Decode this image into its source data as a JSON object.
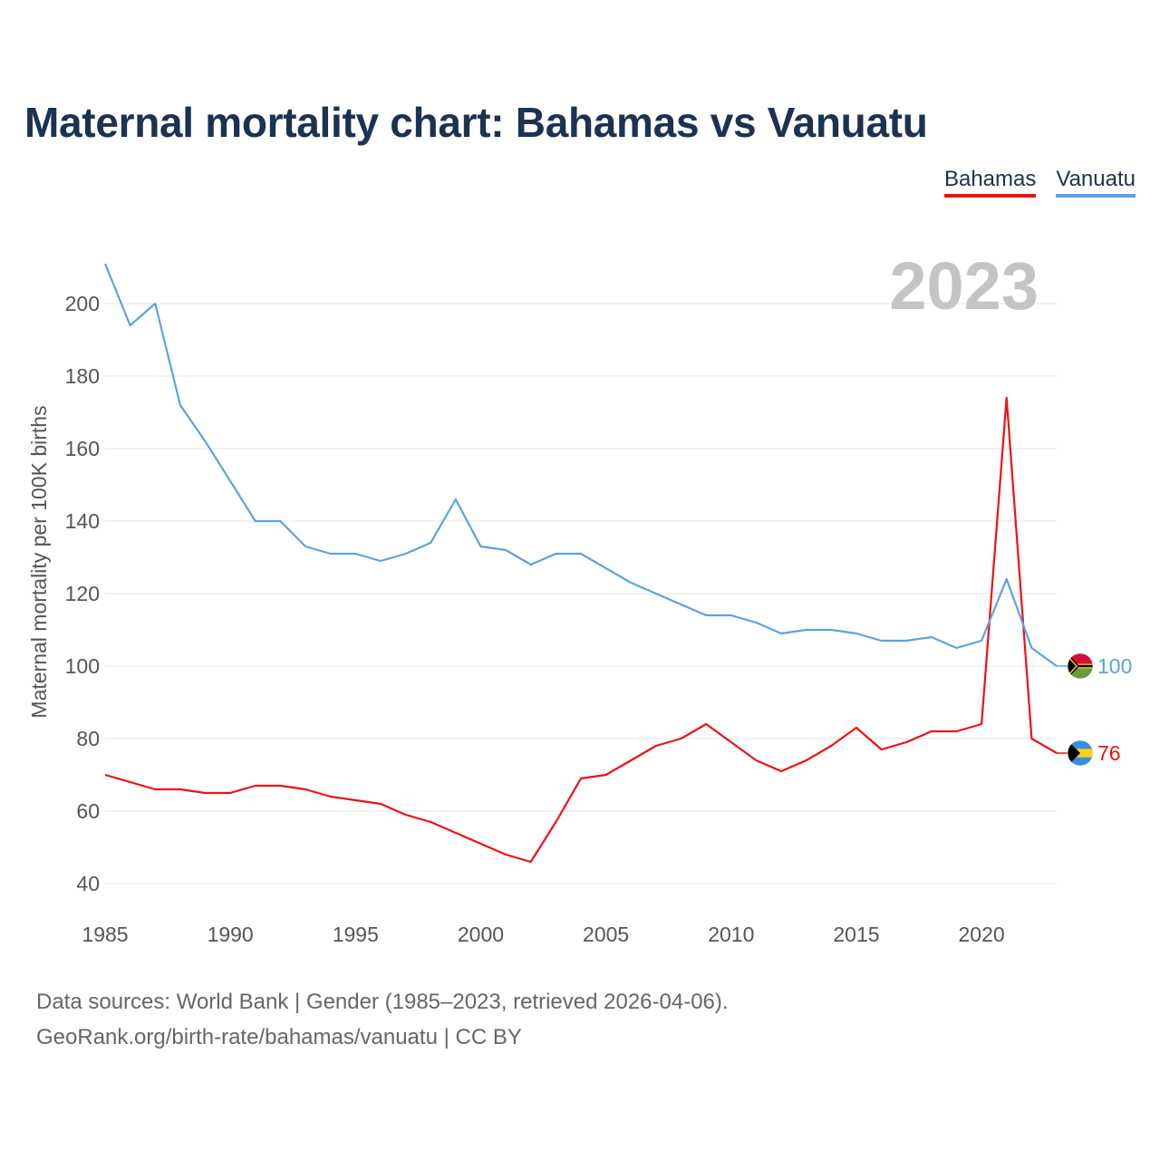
{
  "title": "Maternal mortality chart: Bahamas vs Vanuatu",
  "legend": [
    {
      "name": "Bahamas",
      "color": "#ee1111"
    },
    {
      "name": "Vanuatu",
      "color": "#5aa2e6"
    }
  ],
  "year_watermark": "2023",
  "footer": {
    "line1": "Data sources: World Bank | Gender (1985–2023, retrieved 2026-04-06).",
    "line2": "GeoRank.org/birth-rate/bahamas/vanuatu | CC BY"
  },
  "chart_data": {
    "type": "line",
    "title": "Maternal mortality chart: Bahamas vs Vanuatu",
    "xlabel": "",
    "ylabel": "Maternal mortality per 100K births",
    "xlim": [
      1985,
      2023
    ],
    "ylim": [
      35,
      215
    ],
    "x_ticks": [
      1985,
      1990,
      1995,
      2000,
      2005,
      2010,
      2015,
      2020
    ],
    "y_ticks": [
      40,
      60,
      80,
      100,
      120,
      140,
      160,
      180,
      200
    ],
    "grid": true,
    "x": [
      1985,
      1986,
      1987,
      1988,
      1989,
      1990,
      1991,
      1992,
      1993,
      1994,
      1995,
      1996,
      1997,
      1998,
      1999,
      2000,
      2001,
      2002,
      2003,
      2004,
      2005,
      2006,
      2007,
      2008,
      2009,
      2010,
      2011,
      2012,
      2013,
      2014,
      2015,
      2016,
      2017,
      2018,
      2019,
      2020,
      2021,
      2022,
      2023
    ],
    "series": [
      {
        "name": "Bahamas",
        "color": "#ee1111",
        "end_label": "76",
        "flag": "bahamas-flag",
        "values": [
          70,
          68,
          66,
          66,
          65,
          65,
          67,
          67,
          66,
          64,
          63,
          62,
          59,
          57,
          54,
          51,
          48,
          46,
          57,
          69,
          70,
          74,
          78,
          80,
          84,
          79,
          74,
          71,
          74,
          78,
          83,
          77,
          79,
          82,
          82,
          84,
          174,
          80,
          76
        ]
      },
      {
        "name": "Vanuatu",
        "color": "#5aa2e6",
        "end_label": "100",
        "flag": "vanuatu-flag",
        "values": [
          211,
          194,
          200,
          172,
          162,
          151,
          140,
          140,
          133,
          131,
          131,
          129,
          131,
          134,
          146,
          133,
          132,
          128,
          131,
          131,
          127,
          123,
          120,
          117,
          114,
          114,
          112,
          109,
          110,
          110,
          109,
          107,
          107,
          108,
          105,
          107,
          124,
          105,
          100
        ]
      }
    ]
  }
}
